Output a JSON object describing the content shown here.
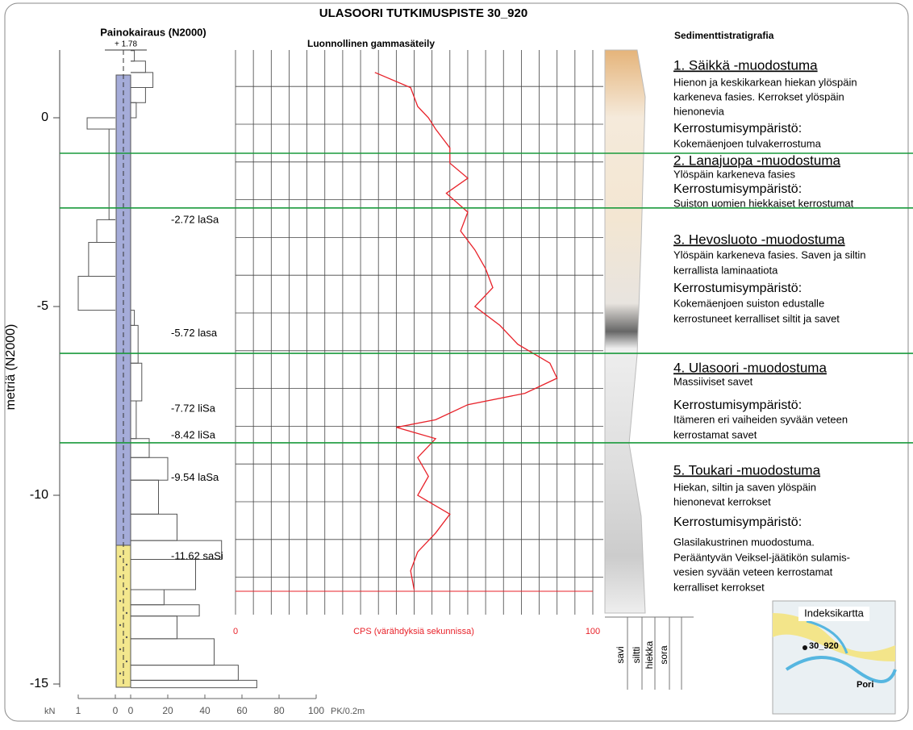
{
  "title": "ULASOORI  TUTKIMUSPISTE 30_920",
  "sounding": {
    "title": "Painokairaus  (N2000)",
    "top_label": "+ 1.78",
    "y_axis_label": "metriä (N2000)",
    "ylim": [
      1.78,
      -15.3
    ],
    "yticks": [
      0,
      -5,
      -10,
      -15
    ],
    "kn_axis": {
      "unit": "kN",
      "ticks": [
        1,
        0
      ],
      "lim": [
        1,
        0
      ]
    },
    "pk_axis": {
      "unit": "PK/0.2m",
      "ticks": [
        0,
        20,
        40,
        60,
        80,
        100
      ]
    },
    "load_steps": [
      {
        "top": 0.0,
        "bottom": -0.3,
        "value": 0.76
      },
      {
        "top": -0.3,
        "bottom": -2.7,
        "value": 0.17
      },
      {
        "top": -2.7,
        "bottom": -3.3,
        "value": 0.5
      },
      {
        "top": -3.3,
        "bottom": -4.2,
        "value": 0.72
      },
      {
        "top": -4.2,
        "bottom": -5.1,
        "value": 1
      }
    ],
    "pk_steps": [
      {
        "top": 1.78,
        "bottom": 1.5,
        "value": 2
      },
      {
        "top": 1.5,
        "bottom": 1.2,
        "value": 8
      },
      {
        "top": 1.2,
        "bottom": 0.8,
        "value": 12
      },
      {
        "top": 0.8,
        "bottom": 0.4,
        "value": 8
      },
      {
        "top": 0.4,
        "bottom": 0.0,
        "value": 3
      },
      {
        "top": -5.1,
        "bottom": -5.5,
        "value": 2
      },
      {
        "top": -5.5,
        "bottom": -6.5,
        "value": 4
      },
      {
        "top": -6.5,
        "bottom": -7.5,
        "value": 6
      },
      {
        "top": -7.5,
        "bottom": -8.5,
        "value": 3
      },
      {
        "top": -8.5,
        "bottom": -9.0,
        "value": 10
      },
      {
        "top": -9.0,
        "bottom": -9.6,
        "value": 20
      },
      {
        "top": -9.6,
        "bottom": -10.5,
        "value": 15
      },
      {
        "top": -10.5,
        "bottom": -11.2,
        "value": 25
      },
      {
        "top": -11.2,
        "bottom": -11.7,
        "value": 49
      },
      {
        "top": -11.7,
        "bottom": -12.5,
        "value": 35
      },
      {
        "top": -12.5,
        "bottom": -12.9,
        "value": 18
      },
      {
        "top": -12.9,
        "bottom": -13.2,
        "value": 37
      },
      {
        "top": -13.2,
        "bottom": -13.8,
        "value": 25
      },
      {
        "top": -13.8,
        "bottom": -14.5,
        "value": 45
      },
      {
        "top": -14.5,
        "bottom": -14.9,
        "value": 58
      },
      {
        "top": -14.9,
        "bottom": -15.1,
        "value": 68
      }
    ],
    "samples": [
      {
        "depth": -2.72,
        "label": "-2.72 laSa"
      },
      {
        "depth": -5.72,
        "label": "-5.72 lasa"
      },
      {
        "depth": -7.72,
        "label": "-7.72 liSa"
      },
      {
        "depth": -8.42,
        "label": "-8.42 liSa"
      },
      {
        "depth": -9.54,
        "label": "-9.54 laSa"
      },
      {
        "depth": -11.62,
        "label": "-11.62 saSi"
      }
    ]
  },
  "gamma_log": {
    "title": "Luonnollinen gammasäteily",
    "x_axis_label": "CPS (värähdyksiä sekunnissa)",
    "xlim": [
      0,
      100
    ],
    "xticks": [
      0,
      100
    ],
    "xgrid": [
      0,
      5,
      10,
      15,
      20,
      25,
      30,
      35,
      40,
      45,
      50,
      55,
      60,
      65,
      70,
      75,
      80,
      85,
      90,
      95,
      100
    ],
    "ygrid": [
      1,
      0,
      -1,
      -2,
      -3,
      -4,
      -5,
      -6,
      -7,
      -8,
      -9,
      -10,
      -11,
      -12
    ],
    "color": "#e8222a",
    "depth": [
      1.2,
      0.8,
      0.3,
      0,
      -0.3,
      -0.8,
      -1.2,
      -1.6,
      -2.0,
      -2.5,
      -3.0,
      -3.5,
      -4.0,
      -4.5,
      -5.0,
      -5.5,
      -6.0,
      -6.5,
      -6.9,
      -7.3,
      -7.6,
      -8.0,
      -8.2,
      -8.5,
      -9.0,
      -9.5,
      -10.0,
      -10.5,
      -11.0,
      -11.5,
      -12.0,
      -12.5
    ],
    "cps": [
      39,
      49,
      51,
      54,
      56,
      60,
      60,
      65,
      59,
      65,
      63,
      67,
      70,
      72,
      67,
      74,
      79,
      88,
      90,
      81,
      65,
      56,
      45,
      56,
      51,
      54,
      51,
      60,
      56,
      51,
      49,
      50
    ]
  },
  "boundaries": [
    -0.94,
    -2.39,
    -6.24,
    -8.61
  ],
  "stratigraphy": {
    "title": "Sedimenttistratigrafia",
    "sections": [
      {
        "heading": "1. Säikkä -muodostuma",
        "description": [
          "Hienon ja keskikarkean hiekan ylöspäin",
          "karkeneva fasies. Kerrokset ylöspäin",
          "hienonevia"
        ],
        "environment_label": "Kerrostumisympäristö:",
        "environment": [
          "Kokemäenjoen tulvakerrostuma"
        ]
      },
      {
        "heading": "2. Lanajuopa -muodostuma",
        "description": [
          "Ylöspäin karkeneva fasies"
        ],
        "environment_label": "Kerrostumisympäristö:",
        "environment": [
          "Suiston uomien hiekkaiset kerrostumat"
        ]
      },
      {
        "heading": "3. Hevosluoto -muodostuma",
        "description": [
          "Ylöspäin karkeneva fasies. Saven ja siltin",
          "kerrallista laminaatiota"
        ],
        "environment_label": "Kerrostumisympäristö:",
        "environment": [
          "Kokemäenjoen suiston edustalle",
          "kerrostuneet kerralliset siltit ja savet"
        ]
      },
      {
        "heading": "4. Ulasoori -muodostuma",
        "description": [
          "Massiiviset  savet"
        ],
        "environment_label": "Kerrostumisympäristö:",
        "environment": [
          "Itämeren eri vaiheiden syvään veteen",
          "kerrostamat savet"
        ]
      },
      {
        "heading": "5. Toukari -muodostuma",
        "description": [
          "Hiekan, siltin ja saven ylöspäin",
          "hienonevat kerrokset"
        ],
        "environment_label": "Kerrostumisympäristö:",
        "environment": [
          "Glasilakustrinen muodostuma.",
          "Perääntyvän Veiksel-jäätikön sulamis-",
          "vesien syvään veteen kerrostamat",
          "kerralliset kerrokset"
        ]
      }
    ],
    "grain_sizes": [
      "savi",
      "siltti",
      "hiekka",
      "sora"
    ]
  },
  "index_map": {
    "title": "Indeksikartta",
    "point_label": "30_920",
    "city_label": "Pori"
  }
}
